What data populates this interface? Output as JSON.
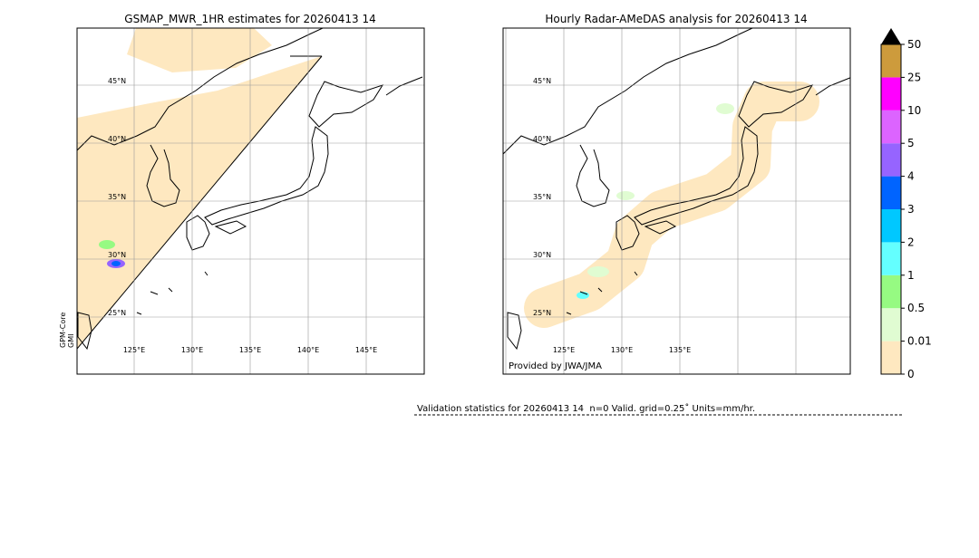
{
  "left_panel": {
    "title": "GSMAP_MWR_1HR estimates for 20260413 14",
    "lat_labels": [
      "45°N",
      "40°N",
      "35°N",
      "30°N",
      "25°N"
    ],
    "lon_labels": [
      "125°E",
      "130°E",
      "135°E",
      "140°E",
      "145°E"
    ],
    "sensor_label": [
      "GPM-Core",
      "GMI"
    ]
  },
  "right_panel": {
    "title": "Hourly Radar-AMeDAS analysis for 20260413 14",
    "lat_labels": [
      "45°N",
      "40°N",
      "35°N",
      "30°N",
      "25°N"
    ],
    "lon_labels": [
      "125°E",
      "130°E",
      "135°E"
    ],
    "credit": "Provided by JWA/JMA"
  },
  "colorbar": {
    "ticks": [
      0,
      0.01,
      0.5,
      1,
      2,
      3,
      4,
      5,
      10,
      25,
      50
    ],
    "colors": [
      "#fee8c0",
      "#e0fcd2",
      "#96fa82",
      "#64ffff",
      "#00c8ff",
      "#0064ff",
      "#9664ff",
      "#dc64ff",
      "#ff00ff",
      "#cd9b3c"
    ],
    "extend_color": "#000000"
  },
  "validation": "Validation statistics for 20260413 14  n=0 Valid. grid=0.25˚ Units=mm/hr."
}
